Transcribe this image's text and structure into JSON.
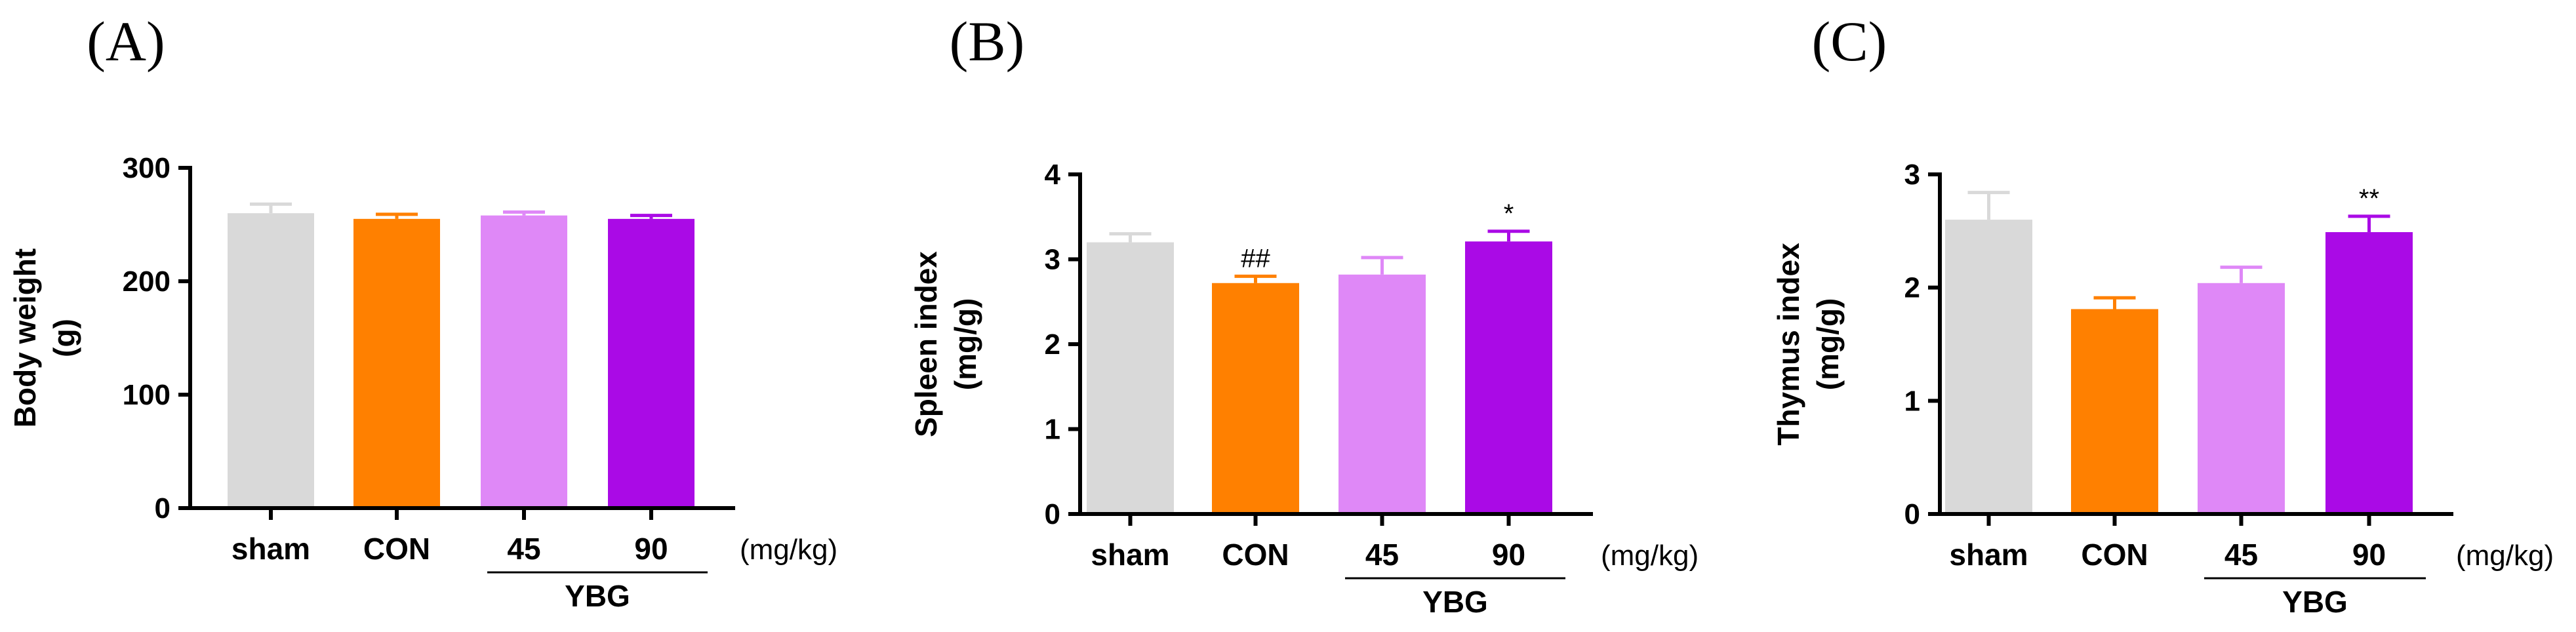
{
  "chart_data": [
    {
      "type": "bar",
      "panel": "(A)",
      "ylabel_line1": "Body weight",
      "ylabel_line2": "(g)",
      "ylim": [
        0,
        300
      ],
      "yticks": [
        0,
        100,
        200,
        300
      ],
      "categories": [
        "sham",
        "CON",
        "45",
        "90"
      ],
      "values": [
        260,
        255,
        258,
        255
      ],
      "errors": [
        8,
        4,
        3,
        3
      ],
      "colors": [
        "#d9d9d9",
        "#ff8000",
        "#df88f7",
        "#aa0ae6"
      ],
      "significance": [
        "",
        "",
        "",
        ""
      ],
      "unit": "(mg/kg)",
      "group_label": "YBG"
    },
    {
      "type": "bar",
      "panel": "(B)",
      "ylabel_line1": "Spleen index",
      "ylabel_line2": "(mg/g)",
      "ylim": [
        0,
        4
      ],
      "yticks": [
        0,
        1,
        2,
        3,
        4
      ],
      "categories": [
        "sham",
        "CON",
        "45",
        "90"
      ],
      "values": [
        3.2,
        2.72,
        2.82,
        3.21
      ],
      "errors": [
        0.1,
        0.08,
        0.2,
        0.12
      ],
      "colors": [
        "#d9d9d9",
        "#ff8000",
        "#df88f7",
        "#aa0ae6"
      ],
      "significance": [
        "",
        "##",
        "",
        "*"
      ],
      "unit": "(mg/kg)",
      "group_label": "YBG"
    },
    {
      "type": "bar",
      "panel": "(C)",
      "ylabel_line1": "Thymus index",
      "ylabel_line2": "(mg/g)",
      "ylim": [
        0,
        3
      ],
      "yticks": [
        0,
        1,
        2,
        3
      ],
      "categories": [
        "sham",
        "CON",
        "45",
        "90"
      ],
      "values": [
        2.6,
        1.81,
        2.04,
        2.49
      ],
      "errors": [
        0.24,
        0.1,
        0.14,
        0.14
      ],
      "colors": [
        "#d9d9d9",
        "#ff8000",
        "#df88f7",
        "#aa0ae6"
      ],
      "significance": [
        "",
        "",
        "",
        "**"
      ],
      "unit": "(mg/kg)",
      "group_label": "YBG"
    }
  ]
}
